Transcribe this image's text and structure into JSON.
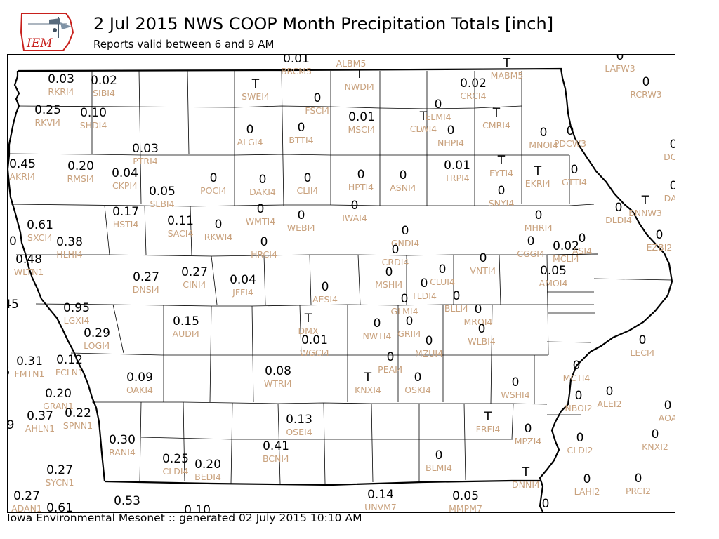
{
  "title": "2 Jul 2015 NWS COOP Month Precipitation Totals [inch]",
  "subtitle": "Reports valid between 6 and 9 AM",
  "footer": "Iowa Environmental Mesonet :: generated 02 July 2015 10:10 AM",
  "logo": {
    "text": "IEM",
    "text_color": "#c8201c"
  },
  "colors": {
    "value": "#000000",
    "station": "#c9a27e",
    "border": "#000000"
  },
  "stations": [
    {
      "id": "BRCM5",
      "value": "0.01"
    },
    {
      "id": "ALBM5",
      "value": "0"
    },
    {
      "id": "MABM5",
      "value": "T"
    },
    {
      "id": "MABM5b",
      "value": "0",
      "id_hidden": true
    },
    {
      "id": "LAFW3",
      "value": "0"
    },
    {
      "id": "RKRI4",
      "value": "0.03"
    },
    {
      "id": "SIBI4",
      "value": "0.02"
    },
    {
      "id": "SWEI4",
      "value": "T"
    },
    {
      "id": "NWDI4",
      "value": "T"
    },
    {
      "id": "CRCI4",
      "value": "0.02"
    },
    {
      "id": "RCRW3",
      "value": "0"
    },
    {
      "id": "FSCI4",
      "value": "0"
    },
    {
      "id": "ELMI4",
      "value": "0"
    },
    {
      "id": "RKVI4",
      "value": "0.25"
    },
    {
      "id": "SHDI4",
      "value": "0.10"
    },
    {
      "id": "MSCI4",
      "value": "0.01"
    },
    {
      "id": "CLWI4",
      "value": "T"
    },
    {
      "id": "CMRI4",
      "value": "T"
    },
    {
      "id": "ALGI4",
      "value": "0"
    },
    {
      "id": "BTTI4",
      "value": "0"
    },
    {
      "id": "NHPI4",
      "value": "0"
    },
    {
      "id": "MNOI4",
      "value": "0"
    },
    {
      "id": "PDCW3",
      "value": "0"
    },
    {
      "id": "PTRI4",
      "value": "0.03"
    },
    {
      "id": "DGV",
      "value": "0"
    },
    {
      "id": "AKRI4",
      "value": "0.45"
    },
    {
      "id": "RMSI4",
      "value": "0.20"
    },
    {
      "id": "CKPI4",
      "value": "0.04"
    },
    {
      "id": "POCI4",
      "value": "0"
    },
    {
      "id": "DAKI4",
      "value": "0"
    },
    {
      "id": "CLII4",
      "value": "0"
    },
    {
      "id": "HPTI4",
      "value": "0"
    },
    {
      "id": "ASNI4",
      "value": "0"
    },
    {
      "id": "TRPI4",
      "value": "0.01"
    },
    {
      "id": "FYTI4",
      "value": "T"
    },
    {
      "id": "EKRI4",
      "value": "T"
    },
    {
      "id": "GTTI4",
      "value": "0"
    },
    {
      "id": "SLBI4",
      "value": "0.05"
    },
    {
      "id": "SNYI4",
      "value": "0"
    },
    {
      "id": "DAR",
      "value": "0"
    },
    {
      "id": "BNNW3",
      "value": "T"
    },
    {
      "id": "HSTI4",
      "value": "0.17"
    },
    {
      "id": "WMTI4",
      "value": "0"
    },
    {
      "id": "IWAI4",
      "value": "0"
    },
    {
      "id": "DLDI4",
      "value": "0"
    },
    {
      "id": "SACI4",
      "value": "0.11"
    },
    {
      "id": "RKWI4",
      "value": "0"
    },
    {
      "id": "WEBI4",
      "value": "0"
    },
    {
      "id": "MHRI4",
      "value": "0"
    },
    {
      "id": "SXCI4",
      "value": "0.61"
    },
    {
      "id": "GNDI4",
      "value": "0"
    },
    {
      "id": "EZBI2",
      "value": "0"
    },
    {
      "id": "HLHI4",
      "value": "0.38"
    },
    {
      "id": "HRCI4",
      "value": "0"
    },
    {
      "id": "MCLI4",
      "value": "0.02"
    },
    {
      "id": "CGGI4",
      "value": "0"
    },
    {
      "id": "ASI4",
      "value": "0"
    },
    {
      "id": "CRDI4",
      "value": "0"
    },
    {
      "id": "WLTN1",
      "value": "0.48"
    },
    {
      "id": "VNTI4",
      "value": "0"
    },
    {
      "id": "DNSI4",
      "value": "0.27"
    },
    {
      "id": "CINI4",
      "value": "0.27"
    },
    {
      "id": "JFFI4",
      "value": "0.04"
    },
    {
      "id": "MSHI4",
      "value": "0"
    },
    {
      "id": "CLUI4",
      "value": "0"
    },
    {
      "id": "AMOI4",
      "value": "0.05"
    },
    {
      "id": "AESI4",
      "value": "0"
    },
    {
      "id": "TLDI4",
      "value": "0"
    },
    {
      "id": "BLLI4",
      "value": "0"
    },
    {
      "id": "LGXI4",
      "value": "0.95"
    },
    {
      "id": "GLMI4",
      "value": "0"
    },
    {
      "id": "MRQI4",
      "value": "0"
    },
    {
      "id": "DMX",
      "value": "T"
    },
    {
      "id": "AUDI4",
      "value": "0.15"
    },
    {
      "id": "NWTI4",
      "value": "0"
    },
    {
      "id": "GRII4",
      "value": "0"
    },
    {
      "id": "WLBI4",
      "value": "0"
    },
    {
      "id": "LOGI4",
      "value": "0.29"
    },
    {
      "id": "WGCI4",
      "value": "0.01"
    },
    {
      "id": "MZUI4",
      "value": "0"
    },
    {
      "id": "LECI4",
      "value": "0"
    },
    {
      "id": "FMTN1",
      "value": "0.31"
    },
    {
      "id": "FCLN1",
      "value": "0.12"
    },
    {
      "id": "PEAI4",
      "value": "0"
    },
    {
      "id": "MCTI4",
      "value": "0"
    },
    {
      "id": "OAKI4",
      "value": "0.09"
    },
    {
      "id": "WTRI4",
      "value": "0.08"
    },
    {
      "id": "KNXI4",
      "value": "T"
    },
    {
      "id": "OSKI4",
      "value": "0"
    },
    {
      "id": "WSHI4",
      "value": "0"
    },
    {
      "id": "ALEI2",
      "value": "0"
    },
    {
      "id": "GRAN1",
      "value": "0.20"
    },
    {
      "id": "NBOI2",
      "value": "0"
    },
    {
      "id": "AOA",
      "value": "0"
    },
    {
      "id": "AHLN1",
      "value": "0.37"
    },
    {
      "id": "SPNN1",
      "value": "0.22"
    },
    {
      "id": "OSEI4",
      "value": "0.13"
    },
    {
      "id": "FRFI4",
      "value": "T"
    },
    {
      "id": "MPZI4",
      "value": "0"
    },
    {
      "id": "RANI4",
      "value": "0.30"
    },
    {
      "id": "KNXI2",
      "value": "0"
    },
    {
      "id": "BCNI4",
      "value": "0.41"
    },
    {
      "id": "CLDI2",
      "value": "0"
    },
    {
      "id": "BLMI4",
      "value": "0"
    },
    {
      "id": "CLDI4",
      "value": "0.25"
    },
    {
      "id": "BEDI4",
      "value": "0.20"
    },
    {
      "id": "SYCN1",
      "value": "0.27"
    },
    {
      "id": "DNNI4",
      "value": "T"
    },
    {
      "id": "LAHI2",
      "value": "0"
    },
    {
      "id": "PRCI2",
      "value": "0"
    },
    {
      "id": "ADAN1",
      "value": "0.27"
    },
    {
      "id": "ADAN1b",
      "value": "0.61",
      "id_hidden": true
    },
    {
      "id": "UNVM7",
      "value": "0.14"
    },
    {
      "id": "MMPM7",
      "value": "0.05"
    },
    {
      "id": "LLL53",
      "value": "0.53",
      "id_hidden": true
    },
    {
      "id": "LLL10",
      "value": "0.10",
      "id_hidden": true
    },
    {
      "id": "LLL0",
      "value": "0",
      "id_hidden": true
    },
    {
      "id": "EDGE20",
      "value": "20",
      "id_hidden": true
    },
    {
      "id": "EDGE45",
      "value": "45",
      "id_hidden": true
    },
    {
      "id": "EDGE5",
      "value": "5",
      "id_hidden": true
    },
    {
      "id": "EDGE9",
      "value": "9",
      "id_hidden": true
    }
  ]
}
